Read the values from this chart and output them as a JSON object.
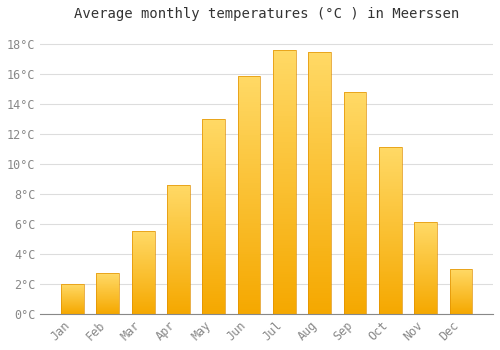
{
  "title": "Average monthly temperatures (°C ) in Meerssen",
  "months": [
    "Jan",
    "Feb",
    "Mar",
    "Apr",
    "May",
    "Jun",
    "Jul",
    "Aug",
    "Sep",
    "Oct",
    "Nov",
    "Dec"
  ],
  "values": [
    2.0,
    2.7,
    5.5,
    8.6,
    13.0,
    15.9,
    17.6,
    17.5,
    14.8,
    11.1,
    6.1,
    3.0
  ],
  "bar_color_bottom": "#F5A800",
  "bar_color_top": "#FFD966",
  "background_color": "#FFFFFF",
  "plot_bg_color": "#FFFFFF",
  "grid_color": "#DDDDDD",
  "ylim": [
    0,
    19
  ],
  "yticks": [
    0,
    2,
    4,
    6,
    8,
    10,
    12,
    14,
    16,
    18
  ],
  "ytick_labels": [
    "0°C",
    "2°C",
    "4°C",
    "6°C",
    "8°C",
    "10°C",
    "12°C",
    "14°C",
    "16°C",
    "18°C"
  ],
  "title_fontsize": 10,
  "tick_fontsize": 8.5,
  "bar_width": 0.65
}
